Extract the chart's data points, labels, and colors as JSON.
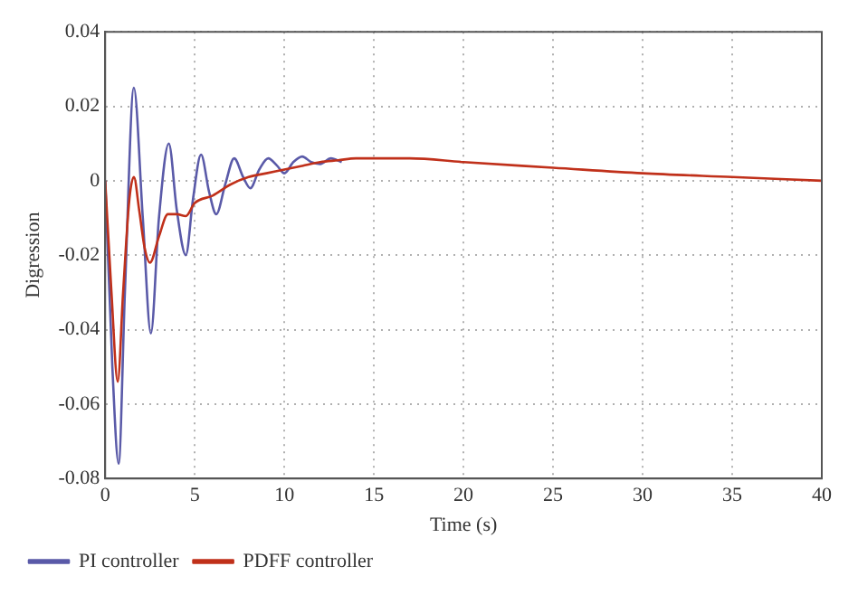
{
  "chart_data": {
    "type": "line",
    "xlabel": "Time (s)",
    "ylabel": "Digression",
    "xlim": [
      0,
      40
    ],
    "xticks": [
      0,
      5,
      10,
      15,
      20,
      25,
      30,
      35,
      40
    ],
    "ylim": [
      -0.08,
      0.04
    ],
    "yticks": [
      -0.08,
      -0.06,
      -0.04,
      -0.02,
      0,
      0.02,
      0.04
    ],
    "grid": true,
    "legend": "bottom left",
    "marker": "none",
    "line_style": "solid",
    "series": [
      {
        "name": "PI controller",
        "color": "#5a5aa8",
        "x": [
          0,
          0.4,
          0.75,
          1.1,
          1.6,
          2.1,
          2.55,
          3.0,
          3.55,
          4.0,
          4.5,
          4.9,
          5.35,
          5.8,
          6.2,
          6.7,
          7.2,
          7.7,
          8.1,
          8.6,
          9.1,
          9.6,
          10.0,
          10.5,
          11.0,
          11.5,
          12.0,
          12.6,
          13.2
        ],
        "values": [
          0,
          -0.05,
          -0.076,
          -0.03,
          0.025,
          -0.01,
          -0.041,
          -0.01,
          0.01,
          -0.008,
          -0.02,
          -0.005,
          0.007,
          -0.003,
          -0.009,
          -0.001,
          0.006,
          0.001,
          -0.002,
          0.003,
          0.006,
          0.004,
          0.002,
          0.005,
          0.0065,
          0.005,
          0.0045,
          0.006,
          0.005
        ]
      },
      {
        "name": "PDFF controller",
        "color": "#c0301a",
        "x": [
          0,
          0.35,
          0.7,
          1.0,
          1.35,
          1.6,
          1.9,
          2.2,
          2.5,
          3.0,
          3.5,
          4.0,
          4.5,
          5,
          6,
          7,
          8,
          9,
          10,
          11,
          12,
          13,
          14,
          15,
          17,
          20,
          25,
          30,
          35,
          40
        ],
        "values": [
          0,
          -0.03,
          -0.054,
          -0.03,
          -0.005,
          0.001,
          -0.008,
          -0.018,
          -0.022,
          -0.015,
          -0.009,
          -0.009,
          -0.0095,
          -0.006,
          -0.004,
          -0.001,
          0.001,
          0.002,
          0.003,
          0.004,
          0.005,
          0.0055,
          0.006,
          0.006,
          0.006,
          0.005,
          0.0035,
          0.002,
          0.001,
          0
        ]
      }
    ]
  }
}
